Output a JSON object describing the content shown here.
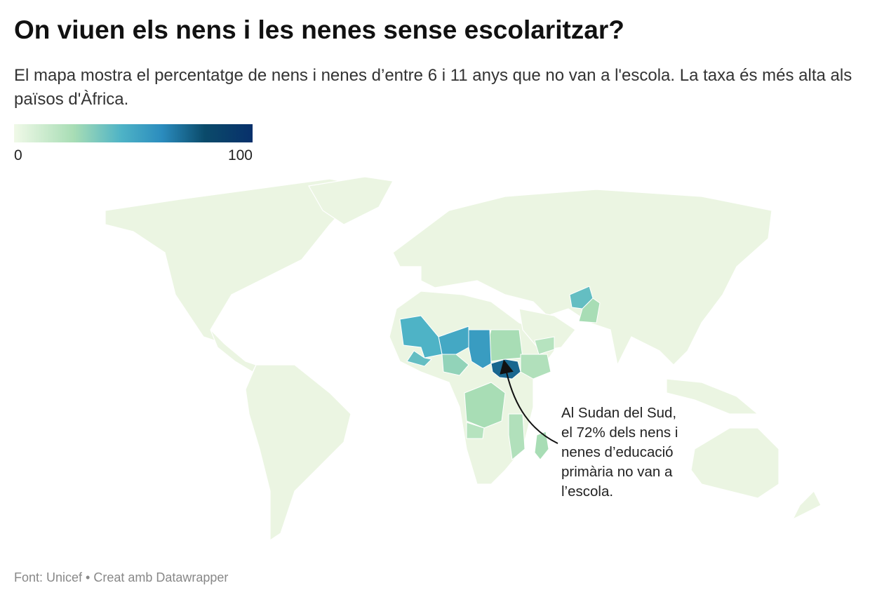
{
  "title": "On viuen els nens i les nenes sense escolaritzar?",
  "subtitle": "El mapa mostra el percentatge de nens i nenes d’entre 6 i 11 anys que no van a l'escola. La taxa és més alta als països d'Àfrica.",
  "legend": {
    "min": 0,
    "max": 100
  },
  "regions": {
    "values": [
      72,
      25,
      55,
      50,
      45,
      40,
      30,
      22,
      40,
      25,
      25,
      20,
      25,
      22,
      20
    ]
  },
  "annotation": "Al Sudan del Sud, el 72% dels nens i nenes d’educació primària no van a l’escola.",
  "footer": "Font: Unicef • Creat amb Datawrapper"
}
